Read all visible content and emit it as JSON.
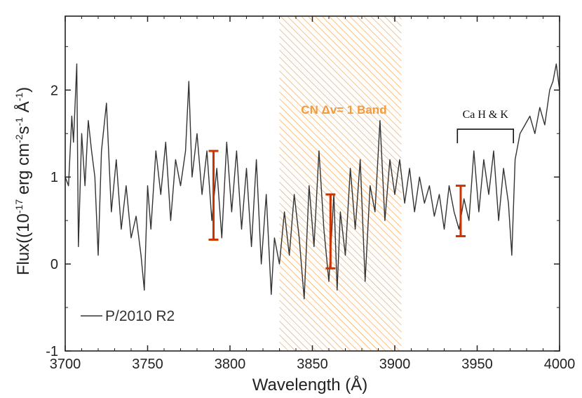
{
  "chart_data": {
    "type": "line",
    "xlabel": "Wavelength (Å)",
    "ylabel": "Flux((10",
    "ylabel_exp1": "-17",
    "ylabel_mid1": " erg cm",
    "ylabel_exp2": "-2",
    "ylabel_mid2": "s",
    "ylabel_exp3": "-1",
    "ylabel_mid3": " Å",
    "ylabel_exp4": "-1",
    "ylabel_end": ")",
    "xlim": [
      3700,
      4000
    ],
    "ylim": [
      -1,
      2.85
    ],
    "x_ticks": [
      3700,
      3750,
      3800,
      3850,
      3900,
      3950,
      4000
    ],
    "x_tick_labels": [
      "3700",
      "3750",
      "3800",
      "3850",
      "3900",
      "3950",
      "4000"
    ],
    "y_ticks": [
      -1,
      0,
      1,
      2
    ],
    "y_tick_labels": [
      "-1",
      "0",
      "1",
      "2"
    ],
    "series": [
      {
        "name": "P/2010 R2",
        "color": "#333333",
        "x": [
          3700,
          3702,
          3704,
          3705,
          3707,
          3708,
          3710,
          3712,
          3714,
          3716,
          3718,
          3720,
          3722,
          3725,
          3728,
          3731,
          3734,
          3737,
          3740,
          3743,
          3746,
          3748,
          3750,
          3752,
          3755,
          3758,
          3761,
          3764,
          3767,
          3770,
          3773,
          3775,
          3777,
          3780,
          3783,
          3786,
          3789,
          3792,
          3795,
          3798,
          3801,
          3804,
          3807,
          3810,
          3813,
          3816,
          3819,
          3822,
          3825,
          3827,
          3830,
          3833,
          3836,
          3839,
          3842,
          3845,
          3848,
          3851,
          3854,
          3857,
          3860,
          3863,
          3865,
          3867,
          3870,
          3873,
          3876,
          3879,
          3882,
          3885,
          3888,
          3891,
          3894,
          3897,
          3900,
          3903,
          3906,
          3909,
          3912,
          3915,
          3918,
          3921,
          3924,
          3927,
          3930,
          3933,
          3936,
          3939,
          3942,
          3945,
          3948,
          3951,
          3954,
          3957,
          3960,
          3963,
          3966,
          3969,
          3971,
          3973,
          3976,
          3979,
          3982,
          3985,
          3988,
          3991,
          3994,
          3996,
          3998,
          4000
        ],
        "y": [
          1.0,
          0.9,
          1.7,
          1.4,
          2.3,
          0.2,
          1.5,
          0.9,
          1.65,
          1.3,
          1.0,
          0.1,
          1.3,
          1.85,
          0.6,
          1.2,
          0.4,
          0.9,
          0.3,
          0.55,
          0.1,
          -0.3,
          0.9,
          0.4,
          1.3,
          0.8,
          1.4,
          0.5,
          1.2,
          0.9,
          1.3,
          2.1,
          1.0,
          1.5,
          0.8,
          1.3,
          0.5,
          1.1,
          0.3,
          1.4,
          0.6,
          1.3,
          0.4,
          1.1,
          0.2,
          1.2,
          0.0,
          0.8,
          -0.35,
          0.3,
          0.0,
          0.6,
          0.1,
          0.8,
          0.3,
          -0.4,
          0.9,
          0.2,
          1.3,
          0.4,
          -0.2,
          0.8,
          -0.3,
          0.6,
          0.1,
          1.1,
          0.4,
          1.2,
          -0.2,
          0.9,
          0.6,
          1.65,
          0.5,
          1.2,
          0.8,
          1.2,
          0.7,
          1.1,
          0.6,
          1.0,
          0.7,
          0.9,
          0.55,
          0.8,
          0.4,
          0.9,
          0.6,
          0.4,
          0.75,
          0.5,
          1.3,
          0.6,
          1.2,
          0.8,
          1.3,
          0.5,
          1.1,
          0.7,
          0.1,
          1.2,
          1.5,
          1.6,
          1.7,
          1.5,
          1.8,
          1.6,
          2.0,
          2.1,
          2.3,
          2.0
        ]
      }
    ],
    "band": {
      "xmin": 3830,
      "xmax": 3904,
      "label": "CN Δv= 1 Band",
      "color": "#f5a04a"
    },
    "error_bars": [
      {
        "x": 3790,
        "ymin": 0.28,
        "ymax": 1.3,
        "color": "#cc3300"
      },
      {
        "x": 3861,
        "ymin": -0.05,
        "ymax": 0.8,
        "color": "#cc3300"
      },
      {
        "x": 3940,
        "ymin": 0.32,
        "ymax": 0.9,
        "color": "#cc3300"
      }
    ],
    "annotations": [
      {
        "label": "Ca H & K",
        "x_start": 3938,
        "x_end": 3972,
        "y": 1.55
      }
    ],
    "legend": {
      "label": "P/2010 R2",
      "placement": "bottom-left"
    }
  }
}
